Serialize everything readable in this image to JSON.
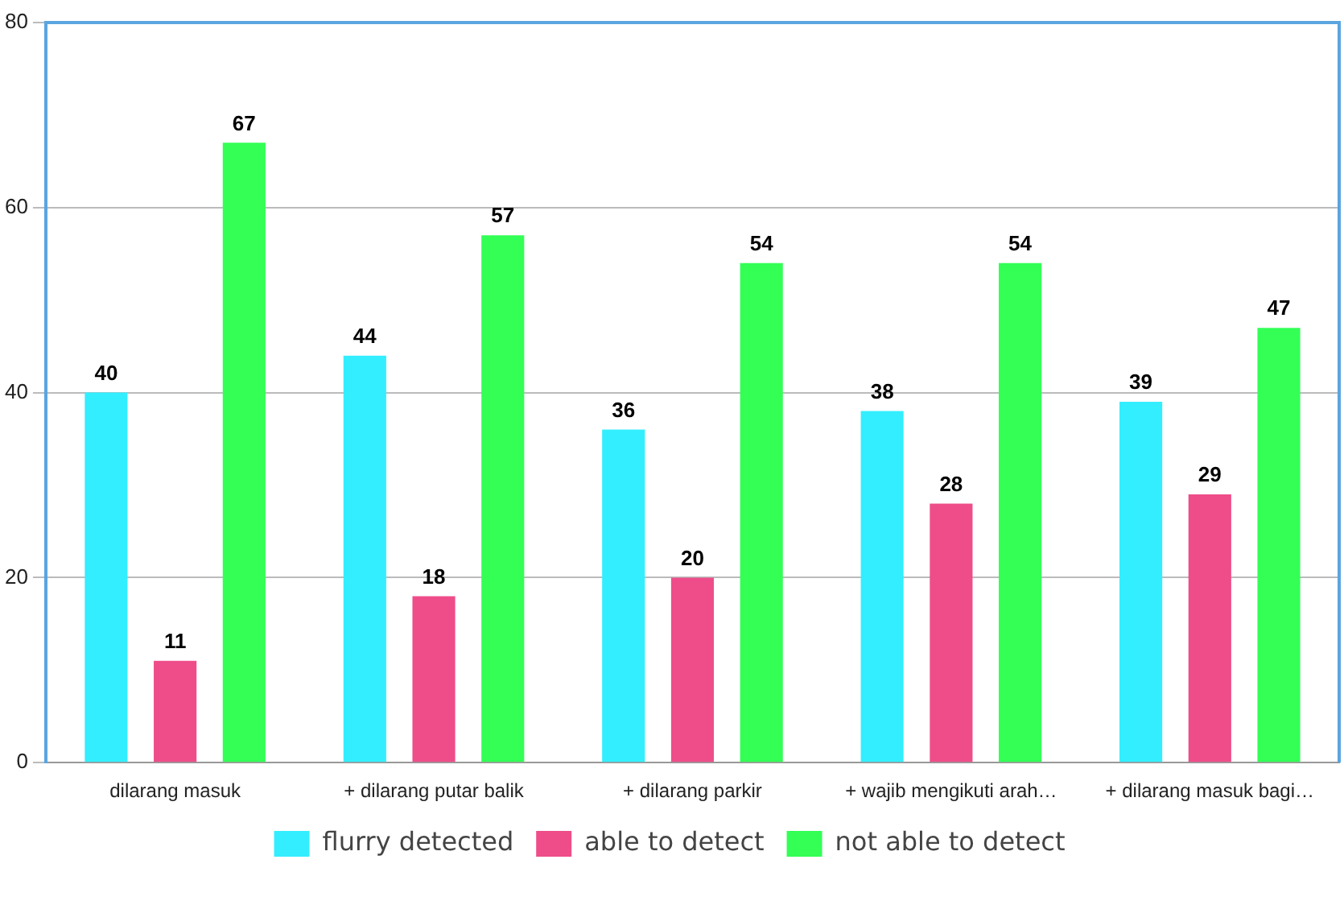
{
  "chart_data": {
    "type": "bar",
    "categories": [
      "dilarang masuk",
      "+ dilarang putar balik",
      "+ dilarang parkir",
      "+ wajib mengikuti arah…",
      "+ dilarang masuk bagi…"
    ],
    "series": [
      {
        "name": "flurry detected",
        "color": "#33eeff",
        "values": [
          40,
          44,
          36,
          38,
          39
        ]
      },
      {
        "name": "able to detect",
        "color": "#ee4d8a",
        "values": [
          11,
          18,
          20,
          28,
          29
        ]
      },
      {
        "name": "not able to detect",
        "color": "#33ff55",
        "values": [
          67,
          57,
          54,
          54,
          47
        ]
      }
    ],
    "ylim": [
      0,
      80
    ],
    "yticks": [
      0,
      20,
      40,
      60,
      80
    ],
    "grid": "y",
    "legend": "bottom",
    "data_labels": true
  }
}
